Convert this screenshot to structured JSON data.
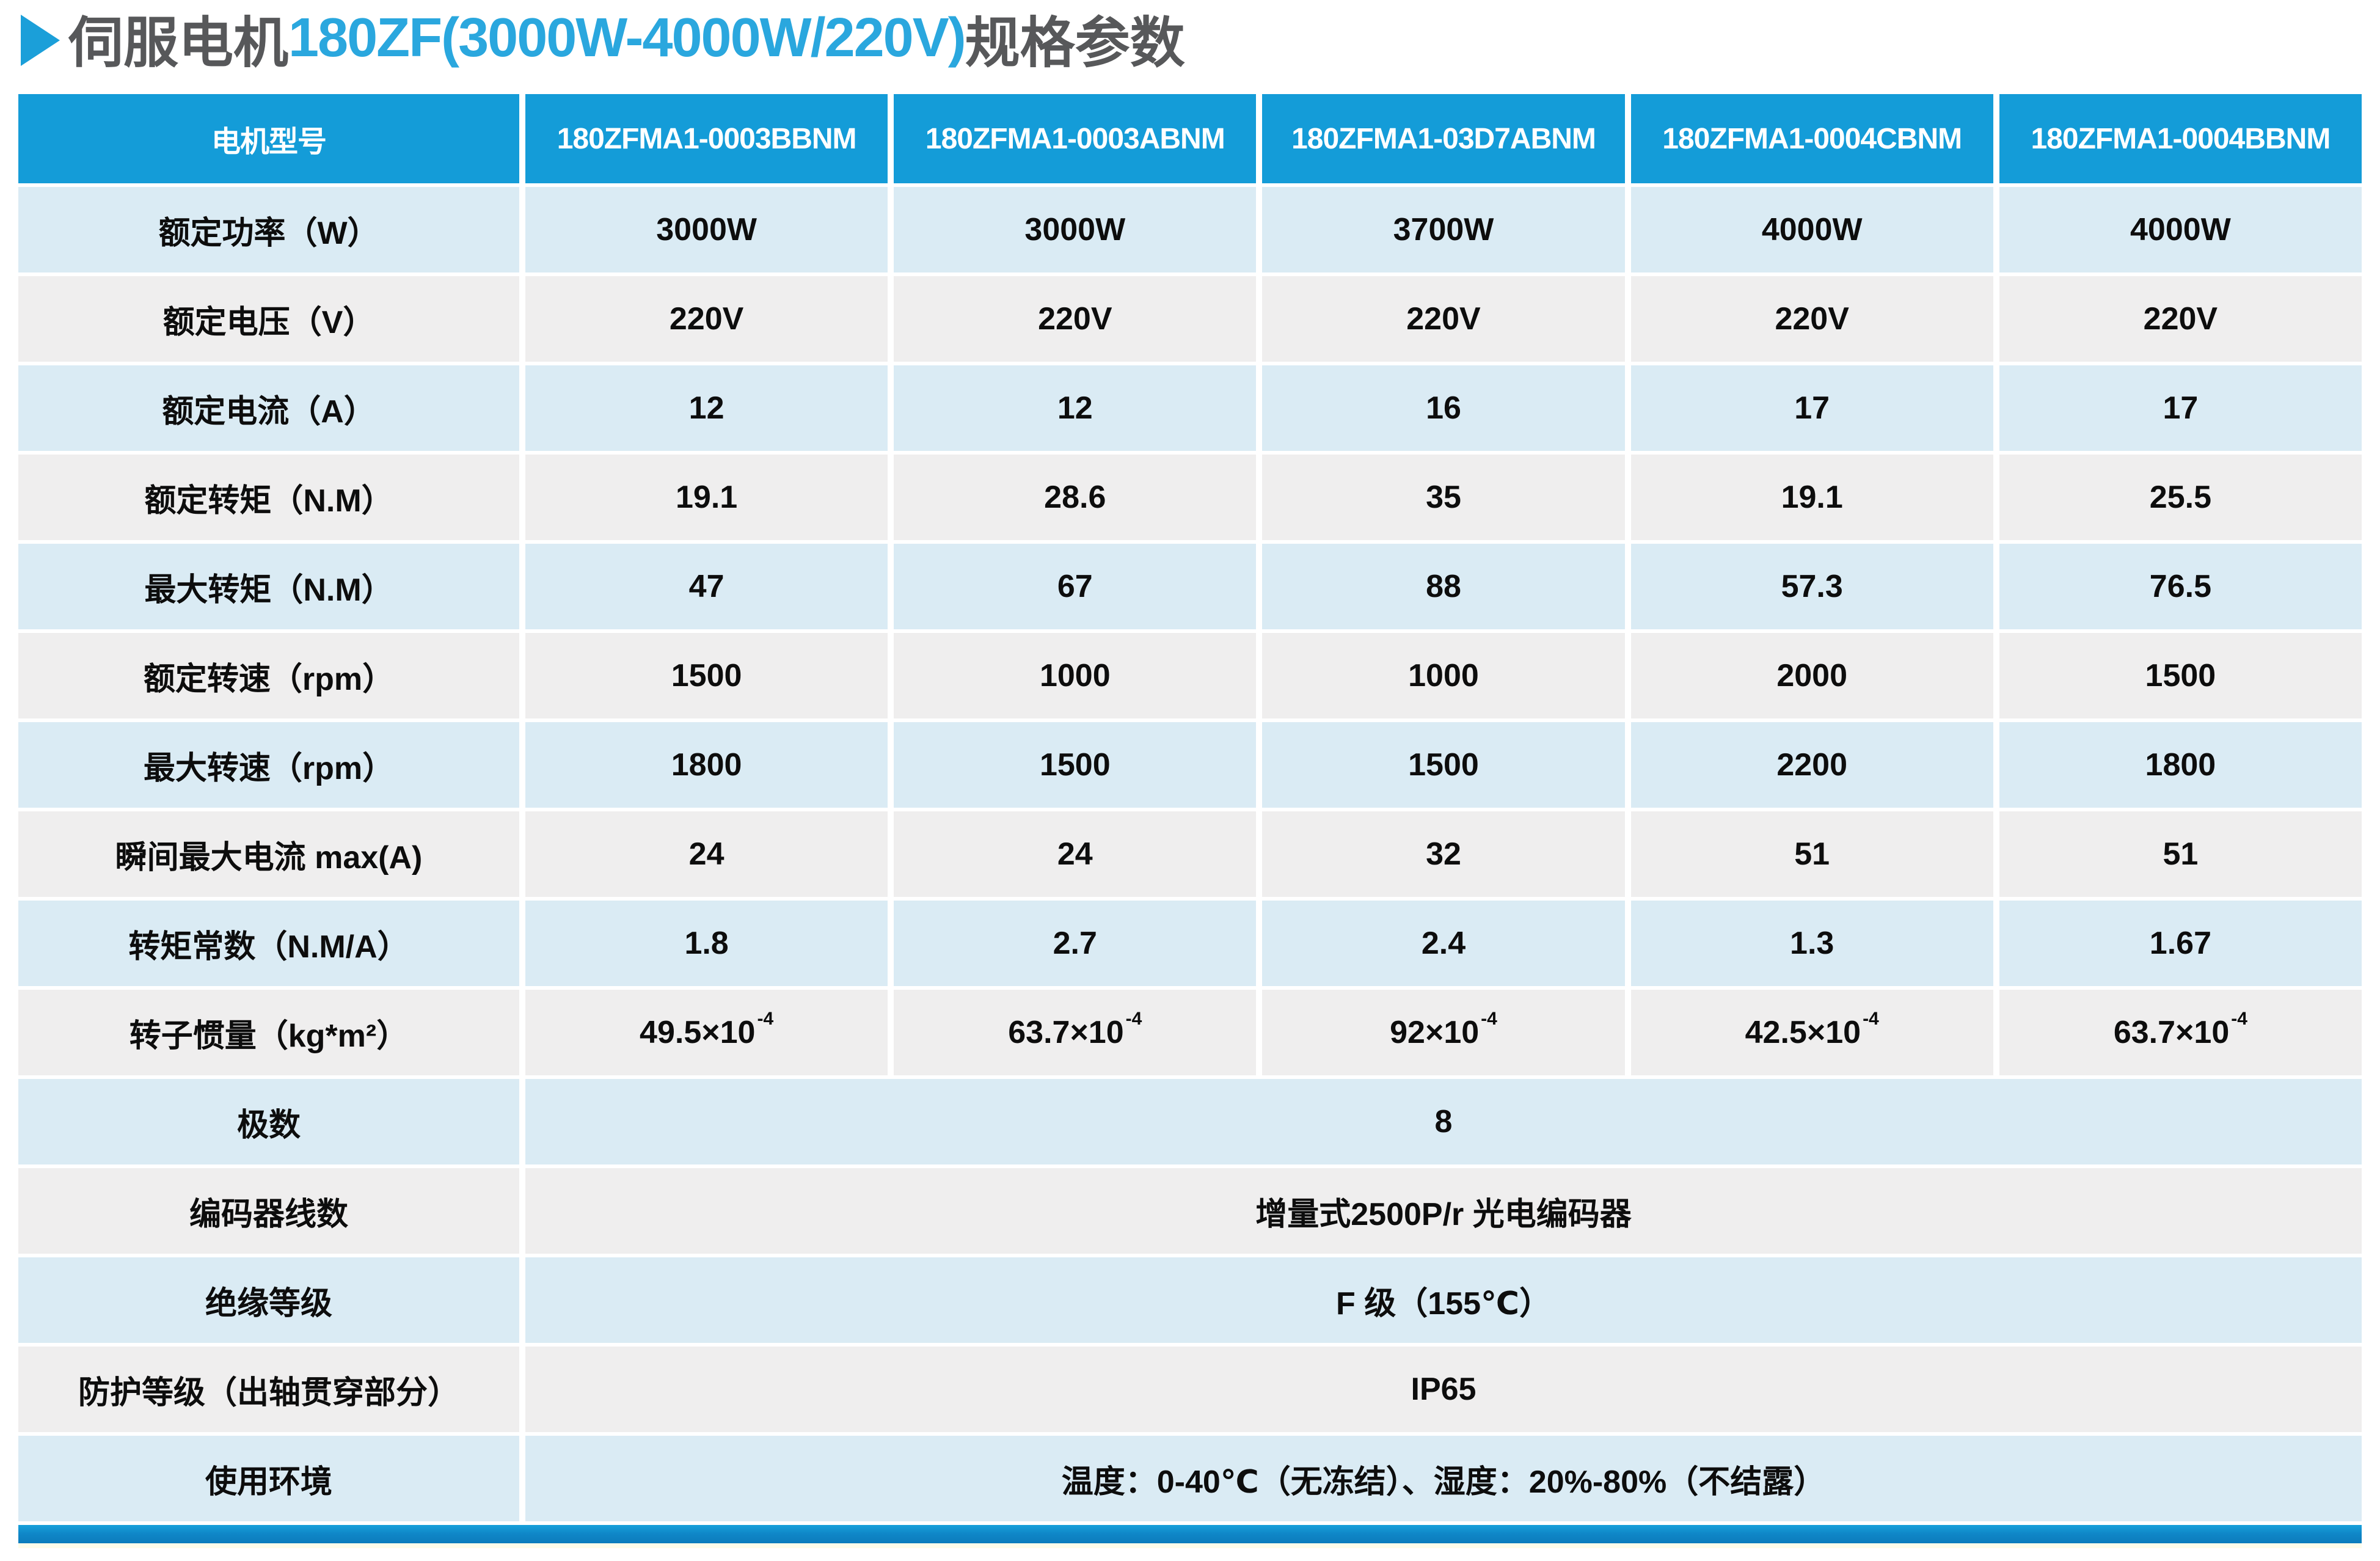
{
  "title": {
    "arrow_icon": "right-triangle",
    "prefix": "伺服电机",
    "model_range": "180ZF(3000W-4000W/220V)",
    "suffix": "规格参数"
  },
  "colors": {
    "header_bg": "#149CD8",
    "header_text": "#FFFFFF",
    "row_blue": "#DAEBF4",
    "row_gray": "#EFEEEE",
    "title_accent_blue": "#2AA7DE",
    "title_dark": "#57585A",
    "bottom_bar_blue": "#0F86C7"
  },
  "table": {
    "header": {
      "label": "电机型号",
      "models": [
        "180ZFMA1-0003BBNM",
        "180ZFMA1-0003ABNM",
        "180ZFMA1-03D7ABNM",
        "180ZFMA1-0004CBNM",
        "180ZFMA1-0004BBNM"
      ]
    },
    "rows": [
      {
        "label": "额定功率（W）",
        "values": [
          "3000W",
          "3000W",
          "3700W",
          "4000W",
          "4000W"
        ]
      },
      {
        "label": "额定电压（V）",
        "values": [
          "220V",
          "220V",
          "220V",
          "220V",
          "220V"
        ]
      },
      {
        "label": "额定电流（A）",
        "values": [
          "12",
          "12",
          "16",
          "17",
          "17"
        ]
      },
      {
        "label": "额定转矩（N.M）",
        "values": [
          "19.1",
          "28.6",
          "35",
          "19.1",
          "25.5"
        ]
      },
      {
        "label": "最大转矩（N.M）",
        "values": [
          "47",
          "67",
          "88",
          "57.3",
          "76.5"
        ]
      },
      {
        "label": "额定转速（rpm）",
        "values": [
          "1500",
          "1000",
          "1000",
          "2000",
          "1500"
        ]
      },
      {
        "label": "最大转速（rpm）",
        "values": [
          "1800",
          "1500",
          "1500",
          "2200",
          "1800"
        ]
      },
      {
        "label": "瞬间最大电流 max(A)",
        "values": [
          "24",
          "24",
          "32",
          "51",
          "51"
        ]
      },
      {
        "label": "转矩常数（N.M/A）",
        "values": [
          "1.8",
          "2.7",
          "2.4",
          "1.3",
          "1.67"
        ]
      },
      {
        "label": "转子惯量（kg*m²）",
        "values": [
          {
            "base": "49.5×10",
            "exp": "-4"
          },
          {
            "base": "63.7×10",
            "exp": "-4"
          },
          {
            "base": "92×10",
            "exp": "-4"
          },
          {
            "base": "42.5×10",
            "exp": "-4"
          },
          {
            "base": "63.7×10",
            "exp": "-4"
          }
        ]
      },
      {
        "label": "极数",
        "value": "8"
      },
      {
        "label": "编码器线数",
        "value": "增量式2500P/r 光电编码器"
      },
      {
        "label": "绝缘等级",
        "value": "F 级（155℃）"
      },
      {
        "label": "防护等级（出轴贯穿部分）",
        "value": "IP65"
      },
      {
        "label": "使用环境",
        "value": "温度：0-40℃（无冻结）、湿度：20%-80%（不结露）"
      }
    ]
  }
}
